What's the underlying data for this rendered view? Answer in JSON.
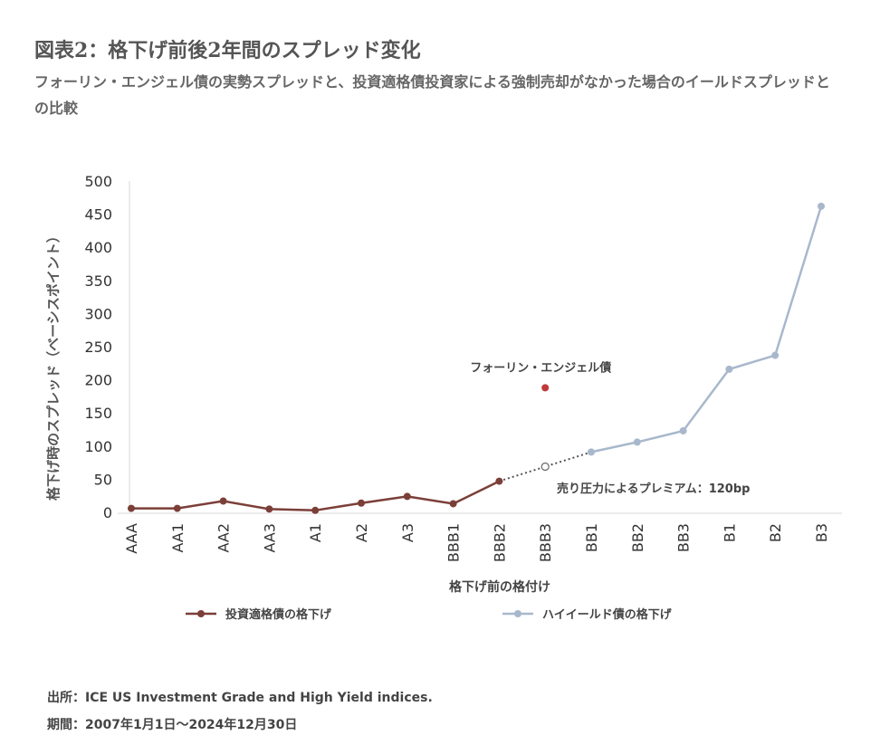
{
  "header": {
    "title": "図表2：格下げ前後2年間のスプレッド変化",
    "subtitle": "フォーリン・エンジェル債の実勢スプレッドと、投資適格債投資家による強制売却がなかった場合のイールドスプレッドとの比較"
  },
  "footer": {
    "source": "出所：ICE US Investment Grade and High Yield indices.",
    "period": "期間：2007年1月1日～2024年12月30日"
  },
  "chart_data": {
    "type": "line",
    "xlabel": "格下げ前の格付け",
    "ylabel": "格下げ時のスプレッド（ベーシスポイント）",
    "ylim": [
      0,
      500
    ],
    "yticks": [
      0,
      50,
      100,
      150,
      200,
      250,
      300,
      350,
      400,
      450,
      500
    ],
    "categories": [
      "AAA",
      "AA1",
      "AA2",
      "AA3",
      "A1",
      "A2",
      "A3",
      "BBB1",
      "BBB2",
      "BBB3",
      "BB1",
      "BB2",
      "BB3",
      "B1",
      "B2",
      "B3"
    ],
    "series": [
      {
        "name": "投資適格債の格下げ",
        "color": "#7b3f38",
        "values": [
          6,
          6,
          17,
          5,
          3,
          14,
          24,
          13,
          47,
          null,
          null,
          null,
          null,
          null,
          null,
          null
        ]
      },
      {
        "name": "ハイイールド債の格下げ",
        "color": "#a8b8cc",
        "values": [
          null,
          null,
          null,
          null,
          null,
          null,
          null,
          null,
          null,
          null,
          91,
          106,
          123,
          216,
          237,
          462
        ]
      }
    ],
    "interpolated_point": {
      "category": "BBB3",
      "value": 69
    },
    "fallen_angel": {
      "label": "フォーリン・エンジェル債",
      "category": "BBB3",
      "value": 188,
      "color": "#c0393b"
    },
    "premium_annotation": "売り圧力によるプレミアム：120bp",
    "grid": false,
    "legend_position": "bottom"
  }
}
